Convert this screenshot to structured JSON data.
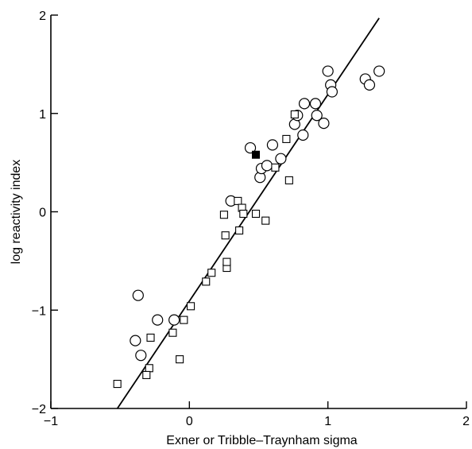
{
  "chart_data": {
    "type": "scatter",
    "xlabel": "Exner or Tribble–Traynham sigma",
    "ylabel": "log reactivity index",
    "xlim": [
      -1,
      2
    ],
    "ylim": [
      -2,
      2
    ],
    "xticks": [
      -1,
      0,
      1,
      2
    ],
    "xtick_labels": [
      "−1",
      "0",
      "1",
      "2"
    ],
    "yticks": [
      -2,
      -1,
      0,
      1,
      2
    ],
    "ytick_labels": [
      "−2",
      "−1",
      "0",
      "1",
      "2"
    ],
    "grid": false,
    "series": [
      {
        "marker": "circle",
        "points": [
          [
            -0.37,
            -0.85
          ],
          [
            -0.39,
            -1.31
          ],
          [
            -0.35,
            -1.46
          ],
          [
            -0.23,
            -1.1
          ],
          [
            -0.11,
            -1.1
          ],
          [
            0.3,
            0.11
          ],
          [
            0.44,
            0.65
          ],
          [
            0.51,
            0.35
          ],
          [
            0.52,
            0.44
          ],
          [
            0.56,
            0.47
          ],
          [
            0.6,
            0.68
          ],
          [
            0.66,
            0.54
          ],
          [
            0.76,
            0.89
          ],
          [
            0.78,
            0.98
          ],
          [
            0.82,
            0.78
          ],
          [
            0.83,
            1.1
          ],
          [
            0.91,
            1.1
          ],
          [
            0.92,
            0.98
          ],
          [
            0.97,
            0.9
          ],
          [
            1.0,
            1.43
          ],
          [
            1.02,
            1.29
          ],
          [
            1.03,
            1.22
          ],
          [
            1.27,
            1.35
          ],
          [
            1.3,
            1.29
          ],
          [
            1.37,
            1.43
          ]
        ]
      },
      {
        "marker": "square",
        "points": [
          [
            -0.52,
            -1.75
          ],
          [
            -0.28,
            -1.28
          ],
          [
            -0.29,
            -1.59
          ],
          [
            -0.31,
            -1.66
          ],
          [
            -0.12,
            -1.23
          ],
          [
            -0.07,
            -1.5
          ],
          [
            -0.04,
            -1.1
          ],
          [
            0.01,
            -0.96
          ],
          [
            0.12,
            -0.71
          ],
          [
            0.16,
            -0.62
          ],
          [
            0.25,
            -0.03
          ],
          [
            0.26,
            -0.24
          ],
          [
            0.27,
            -0.57
          ],
          [
            0.27,
            -0.51
          ],
          [
            0.35,
            0.11
          ],
          [
            0.38,
            0.04
          ],
          [
            0.36,
            -0.19
          ],
          [
            0.39,
            -0.02
          ],
          [
            0.48,
            -0.02
          ],
          [
            0.55,
            -0.09
          ],
          [
            0.62,
            0.45
          ],
          [
            0.7,
            0.74
          ],
          [
            0.72,
            0.32
          ],
          [
            0.76,
            0.99
          ]
        ]
      },
      {
        "marker": "filled-square",
        "points": [
          [
            0.48,
            0.58
          ]
        ]
      }
    ],
    "fit_line": {
      "x": [
        -0.52,
        1.37
      ],
      "y": [
        -2.0,
        1.97
      ]
    }
  }
}
